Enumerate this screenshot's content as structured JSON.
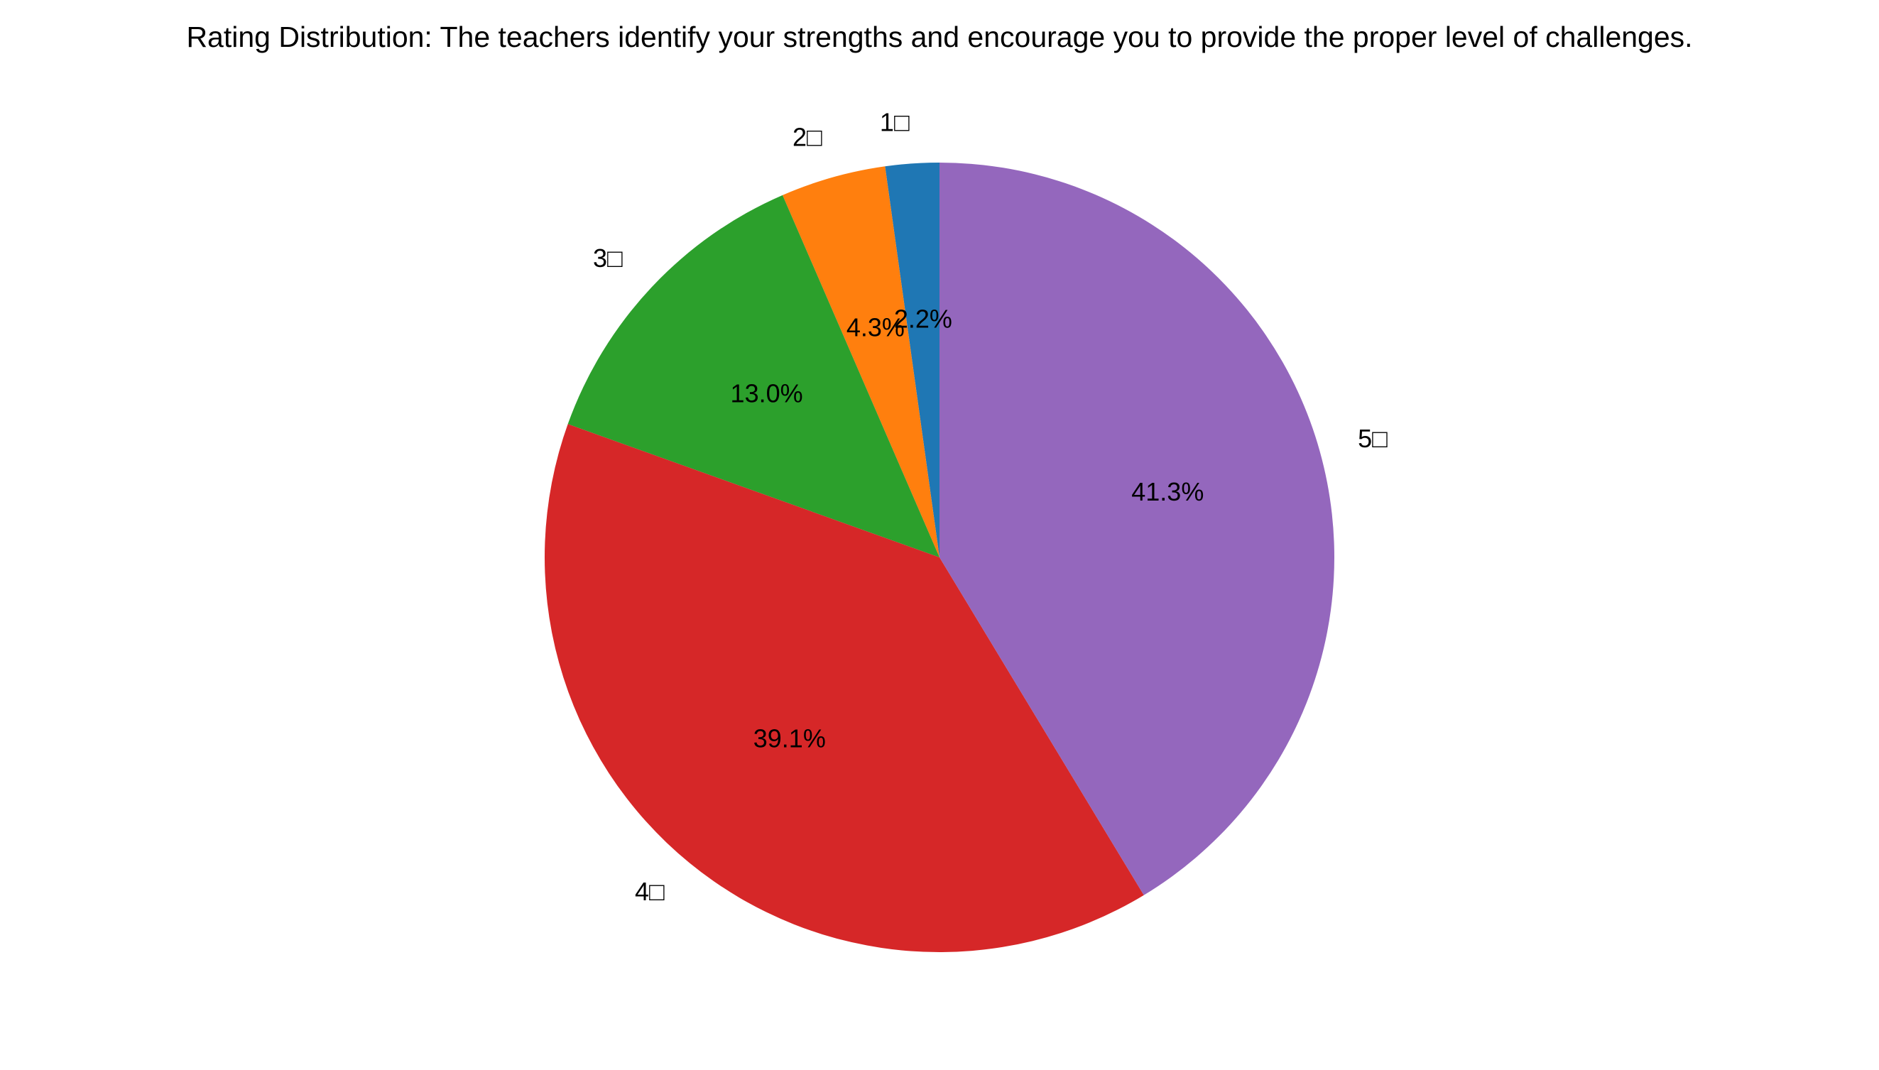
{
  "chart_data": {
    "type": "pie",
    "title": "Rating Distribution: The teachers identify your strengths and encourage you to provide the proper level of challenges.",
    "categories": [
      "1□",
      "2□",
      "3□",
      "4□",
      "5□"
    ],
    "values": [
      2.2,
      4.3,
      13.0,
      39.1,
      41.3
    ],
    "percent_labels": [
      "2.2%",
      "4.3%",
      "13.0%",
      "39.1%",
      "41.3%"
    ],
    "colors": [
      "#1f77b4",
      "#ff7f0e",
      "#2ca02c",
      "#d62728",
      "#9467bd"
    ],
    "start_angle_deg": 90,
    "direction": "counterclockwise",
    "legend": "none",
    "grid": false
  }
}
